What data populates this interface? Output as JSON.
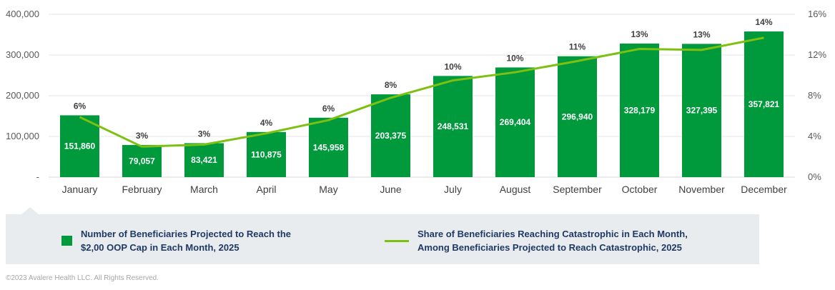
{
  "chart_data": {
    "type": "bar",
    "categories": [
      "January",
      "February",
      "March",
      "April",
      "May",
      "June",
      "July",
      "August",
      "September",
      "October",
      "November",
      "December"
    ],
    "series": [
      {
        "name": "Number of Beneficiaries Projected to Reach the\n$2,00 OOP Cap in Each Month, 2025",
        "type": "bar",
        "axis": "left",
        "values": [
          151860,
          79057,
          83421,
          110875,
          145958,
          203375,
          248531,
          269404,
          296940,
          328179,
          327395,
          357821
        ],
        "labels": [
          "151,860",
          "79,057",
          "83,421",
          "110,875",
          "145,958",
          "203,375",
          "248,531",
          "269,404",
          "296,940",
          "328,179",
          "327,395",
          "357,821"
        ],
        "color": "#009a3d"
      },
      {
        "name": "Share of Beneficiaries Reaching Catastrophic  in Each Month,\nAmong  Beneficiaries Projected to Reach Catastrophic,  2025",
        "type": "line",
        "axis": "right",
        "values": [
          5.9,
          3.0,
          3.2,
          4.3,
          5.6,
          7.8,
          9.5,
          10.3,
          11.4,
          12.6,
          12.5,
          13.7
        ],
        "labels": [
          "6%",
          "3%",
          "3%",
          "4%",
          "6%",
          "8%",
          "10%",
          "10%",
          "11%",
          "13%",
          "13%",
          "14%"
        ],
        "color": "#7cc111"
      }
    ],
    "y_left": {
      "ylim": [
        0,
        400000
      ],
      "ticks": [
        0,
        100000,
        200000,
        300000,
        400000
      ],
      "tick_labels": [
        "-",
        "100,000",
        "200,000",
        "300,000",
        "400,000"
      ]
    },
    "y_right": {
      "ylim": [
        0,
        16
      ],
      "ticks": [
        0,
        4,
        8,
        12,
        16
      ],
      "tick_labels": [
        "0%",
        "4%",
        "8%",
        "12%",
        "16%"
      ]
    },
    "grid": true,
    "legend_position": "bottom"
  },
  "legend": {
    "bar_label": "Number of Beneficiaries Projected to Reach the\n$2,00 OOP Cap in Each Month, 2025",
    "line_label": "Share of Beneficiaries Reaching Catastrophic  in Each Month,\nAmong  Beneficiaries Projected to Reach Catastrophic,  2025"
  },
  "footer": {
    "copyright": "©2023 Avalere Health LLC. All Rights Reserved."
  }
}
